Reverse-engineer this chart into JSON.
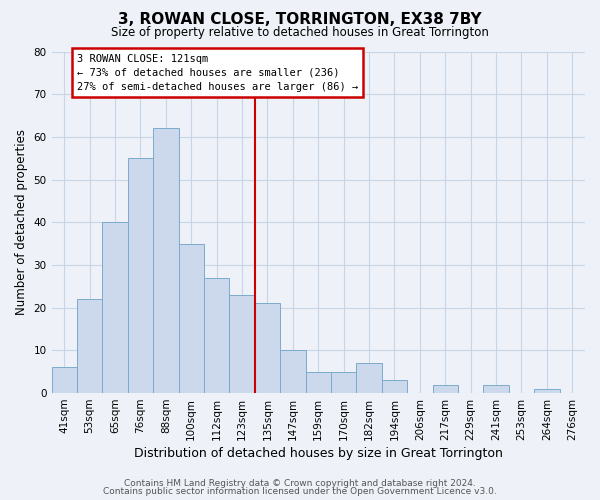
{
  "title": "3, ROWAN CLOSE, TORRINGTON, EX38 7BY",
  "subtitle": "Size of property relative to detached houses in Great Torrington",
  "xlabel": "Distribution of detached houses by size in Great Torrington",
  "ylabel": "Number of detached properties",
  "bar_labels": [
    "41sqm",
    "53sqm",
    "65sqm",
    "76sqm",
    "88sqm",
    "100sqm",
    "112sqm",
    "123sqm",
    "135sqm",
    "147sqm",
    "159sqm",
    "170sqm",
    "182sqm",
    "194sqm",
    "206sqm",
    "217sqm",
    "229sqm",
    "241sqm",
    "253sqm",
    "264sqm",
    "276sqm"
  ],
  "bar_values": [
    6,
    22,
    40,
    55,
    62,
    35,
    27,
    23,
    21,
    10,
    5,
    5,
    7,
    3,
    0,
    2,
    0,
    2,
    0,
    1,
    0
  ],
  "bar_color": "#ccd9ed",
  "bar_edge_color": "#7aabcc",
  "annotation_title": "3 ROWAN CLOSE: 121sqm",
  "annotation_line1": "← 73% of detached houses are smaller (236)",
  "annotation_line2": "27% of semi-detached houses are larger (86) →",
  "annotation_box_color": "#ffffff",
  "annotation_box_edge_color": "#cc0000",
  "vline_color": "#cc0000",
  "vline_position": 7.5,
  "ylim": [
    0,
    80
  ],
  "yticks": [
    0,
    10,
    20,
    30,
    40,
    50,
    60,
    70,
    80
  ],
  "grid_color": "#c8d4e8",
  "background_color": "#eef2f8",
  "footer_line1": "Contains HM Land Registry data © Crown copyright and database right 2024.",
  "footer_line2": "Contains public sector information licensed under the Open Government Licence v3.0."
}
